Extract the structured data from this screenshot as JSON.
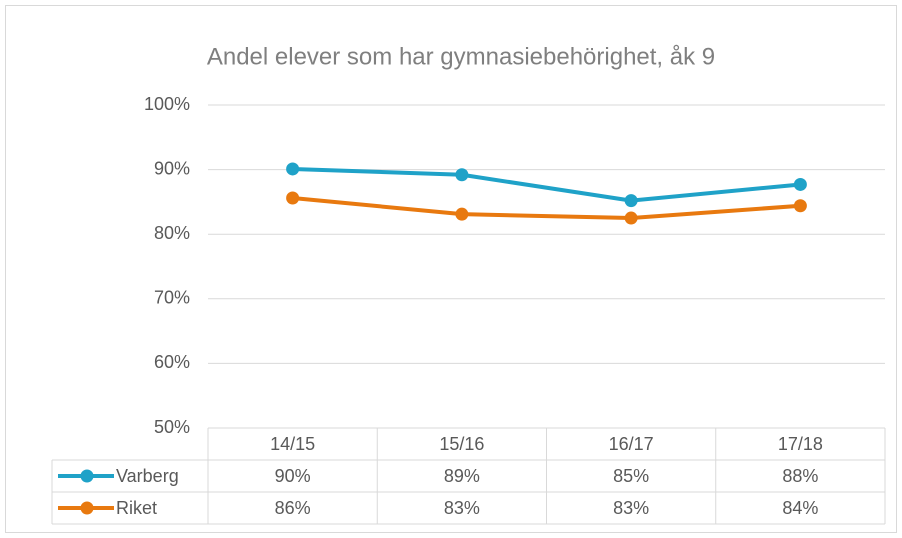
{
  "chart_data": {
    "type": "line",
    "title": "Andel elever som har gymnasiebehörighet, åk 9",
    "categories": [
      "14/15",
      "15/16",
      "16/17",
      "17/18"
    ],
    "series": [
      {
        "name": "Varberg",
        "color": "#1fa2c8",
        "values": [
          90.1,
          89.2,
          85.2,
          87.7
        ],
        "value_labels": [
          "90%",
          "89%",
          "85%",
          "88%"
        ]
      },
      {
        "name": "Riket",
        "color": "#e8790f",
        "values": [
          85.6,
          83.1,
          82.5,
          84.4
        ],
        "value_labels": [
          "86%",
          "83%",
          "83%",
          "84%"
        ]
      }
    ],
    "ylim": [
      50,
      100
    ],
    "yticks": [
      {
        "value": 50,
        "label": "50%"
      },
      {
        "value": 60,
        "label": "60%"
      },
      {
        "value": 70,
        "label": "70%"
      },
      {
        "value": 80,
        "label": "80%"
      },
      {
        "value": 90,
        "label": "90%"
      },
      {
        "value": 100,
        "label": "100%"
      }
    ],
    "grid": true
  }
}
